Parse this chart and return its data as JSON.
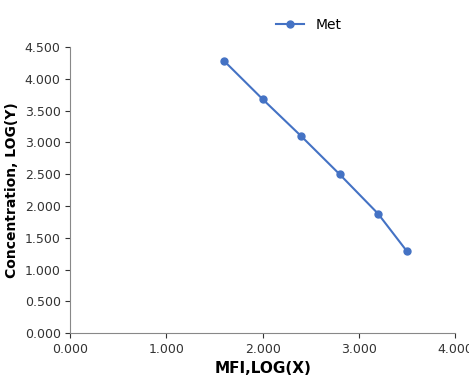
{
  "x": [
    1.6,
    2.0,
    2.4,
    2.8,
    3.2,
    3.5
  ],
  "y": [
    4.28,
    3.68,
    3.1,
    2.5,
    1.88,
    1.29
  ],
  "line_color": "#4472C4",
  "marker": "o",
  "marker_size": 5,
  "line_width": 1.5,
  "xlabel": "MFI,LOG(X)",
  "ylabel": "Concentration, LOG(Y)",
  "legend_label": "Met",
  "xlim": [
    0.0,
    4.0
  ],
  "ylim": [
    0.0,
    4.5
  ],
  "xticks": [
    0.0,
    1.0,
    2.0,
    3.0,
    4.0
  ],
  "yticks": [
    0.0,
    0.5,
    1.0,
    1.5,
    2.0,
    2.5,
    3.0,
    3.5,
    4.0,
    4.5
  ],
  "xlabel_fontsize": 11,
  "ylabel_fontsize": 10,
  "legend_fontsize": 10,
  "tick_fontsize": 9,
  "background_color": "#ffffff"
}
